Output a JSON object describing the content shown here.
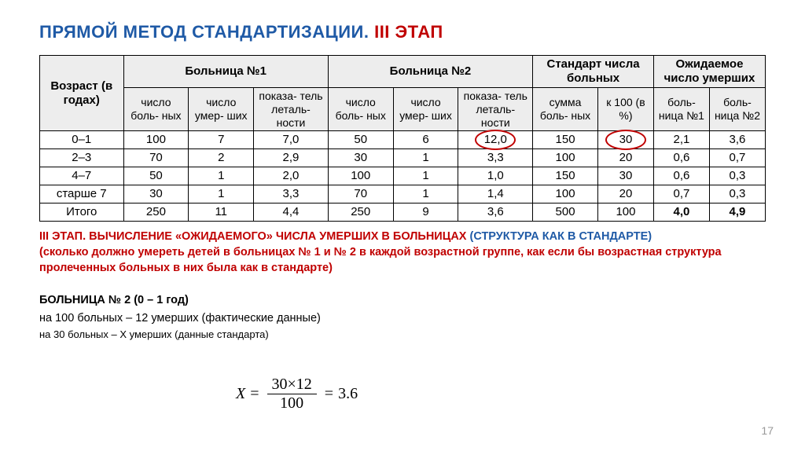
{
  "title": {
    "part1": "ПРЯМОЙ МЕТОД СТАНДАРТИЗАЦИИ. ",
    "part2": "III ЭТАП"
  },
  "headers": {
    "age": "Возраст (в годах)",
    "h1": "Больница №1",
    "h2": "Больница №2",
    "std": "Стандарт числа больных",
    "exp": "Ожидаемое число умерших",
    "sub": {
      "patients": "число боль-\nных",
      "deaths": "число умер-\nших",
      "rate": "показа-\nтель леталь-\nности",
      "sum": "сумма боль-\nных",
      "k100": "к 100 (в %)",
      "b1": "боль-\nница №1",
      "b2": "боль-\nница №2"
    }
  },
  "rows": [
    {
      "age": "0–1",
      "a": "100",
      "b": "7",
      "c": "7,0",
      "d": "50",
      "e": "6",
      "f": "12,0",
      "g": "150",
      "h": "30",
      "i": "2,1",
      "j": "3,6",
      "circle_f": true,
      "circle_h": true
    },
    {
      "age": "2–3",
      "a": "70",
      "b": "2",
      "c": "2,9",
      "d": "30",
      "e": "1",
      "f": "3,3",
      "g": "100",
      "h": "20",
      "i": "0,6",
      "j": "0,7"
    },
    {
      "age": "4–7",
      "a": "50",
      "b": "1",
      "c": "2,0",
      "d": "100",
      "e": "1",
      "f": "1,0",
      "g": "150",
      "h": "30",
      "i": "0,6",
      "j": "0,3"
    },
    {
      "age": "старше 7",
      "a": "30",
      "b": "1",
      "c": "3,3",
      "d": "70",
      "e": "1",
      "f": "1,4",
      "g": "100",
      "h": "20",
      "i": "0,7",
      "j": "0,3"
    }
  ],
  "total": {
    "label": "Итого",
    "a": "250",
    "b": "11",
    "c": "4,4",
    "d": "250",
    "e": "9",
    "f": "3,6",
    "g": "500",
    "h": "100",
    "i": "4,0",
    "j": "4,9"
  },
  "paragraph": {
    "l1a": "III ЭТАП. ВЫЧИСЛЕНИЕ «ОЖИДАЕМОГО» ЧИСЛА УМЕРШИХ В БОЛЬНИЦАХ ",
    "l1b": "(СТРУКТУРА КАК В СТАНДАРТЕ)",
    "l2": "(сколько должно умереть детей в больницах № 1 и № 2 в каждой возрастной группе, как если бы возрастная структура пролеченных больных в них была как в стандарте)"
  },
  "h2": {
    "title": "БОЛЬНИЦА № 2 (0 – 1 год)",
    "line1": "на 100 больных – 12 умерших  (фактические данные)",
    "line2": "на 30 больных – Х умерших (данные стандарта)"
  },
  "formula": {
    "X": "X",
    "eq": "=",
    "num": "30×12",
    "den": "100",
    "result": "3.6"
  },
  "slide": "17"
}
